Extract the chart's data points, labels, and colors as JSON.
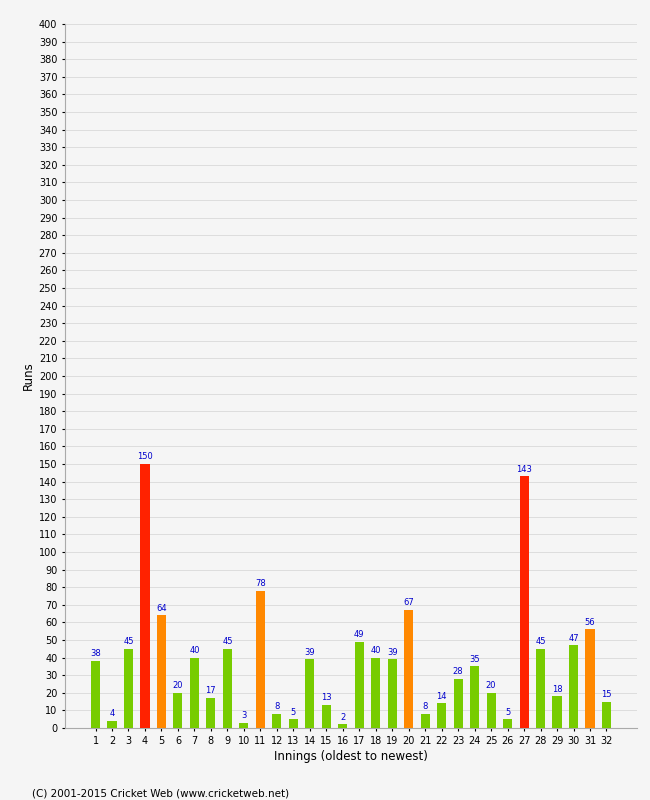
{
  "innings": [
    1,
    2,
    3,
    4,
    5,
    6,
    7,
    8,
    9,
    10,
    11,
    12,
    13,
    14,
    15,
    16,
    17,
    18,
    19,
    20,
    21,
    22,
    23,
    24,
    25,
    26,
    27,
    28,
    29,
    30,
    31,
    32
  ],
  "values": [
    38,
    4,
    45,
    150,
    64,
    20,
    40,
    17,
    45,
    3,
    78,
    8,
    5,
    39,
    13,
    2,
    49,
    40,
    39,
    67,
    8,
    14,
    28,
    35,
    20,
    5,
    143,
    45,
    18,
    47,
    56,
    15
  ],
  "colors": [
    "green",
    "green",
    "green",
    "red",
    "orange",
    "green",
    "green",
    "green",
    "green",
    "green",
    "orange",
    "green",
    "green",
    "green",
    "green",
    "green",
    "green",
    "green",
    "green",
    "orange",
    "green",
    "green",
    "green",
    "green",
    "green",
    "green",
    "red",
    "green",
    "green",
    "green",
    "orange",
    "green"
  ],
  "ylabel": "Runs",
  "xlabel": "Innings (oldest to newest)",
  "ylim": [
    0,
    400
  ],
  "ytick_step": 10,
  "bg_color": "#f5f5f5",
  "grid_color": "#dddddd",
  "bar_green": "#77cc00",
  "bar_orange": "#ff8800",
  "bar_red": "#ff2200",
  "label_color": "#0000cc",
  "footer": "(C) 2001-2015 Cricket Web (www.cricketweb.net)"
}
